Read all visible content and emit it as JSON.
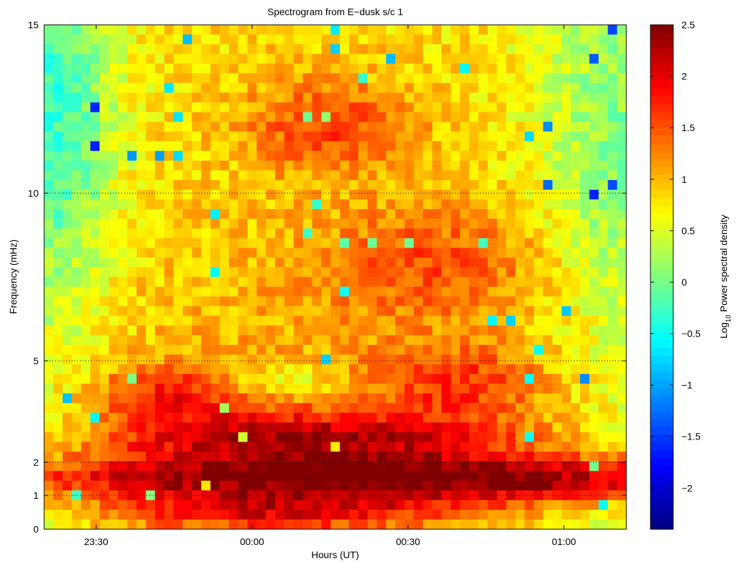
{
  "chart_data": {
    "type": "heatmap",
    "title": "Spectrogram from E−dusk s/c 1",
    "xlabel": "Hours (UT)",
    "ylabel": "Frequency (mHz)",
    "x_ticks": [
      "23:30",
      "00:00",
      "00:30",
      "01:00"
    ],
    "y_ticks": [
      "0",
      "1",
      "2",
      "5",
      "10",
      "15"
    ],
    "y_tick_values": [
      0,
      1,
      2,
      5,
      10,
      15
    ],
    "gridlines_y": [
      1,
      2,
      5,
      10
    ],
    "time_range": [
      "23:20",
      "01:12"
    ],
    "frequency_range_mHz": [
      0,
      15
    ],
    "colorbar": {
      "label_prefix": "Log",
      "label_sub": "10",
      "label_suffix": " Power spectral density",
      "ticks": [
        "2.5",
        "2",
        "1.5",
        "1",
        "0.5",
        "0",
        "−0.5",
        "−1",
        "−1.5",
        "−2"
      ],
      "tick_values": [
        2.5,
        2,
        1.5,
        1,
        0.5,
        0,
        -0.5,
        -1,
        -1.5,
        -2
      ],
      "range": [
        -2.4,
        2.5
      ],
      "colormap": "jet"
    },
    "features": [
      {
        "time_start": "23:30",
        "time_end": "01:10",
        "freq_mHz": [
          1,
          2
        ],
        "log10_psd": 2.3
      },
      {
        "time_start": "23:45",
        "time_end": "00:40",
        "freq_mHz": [
          2,
          3.5
        ],
        "log10_psd": 2.0
      },
      {
        "time_start": "23:30",
        "time_end": "00:30",
        "freq_mHz": [
          0,
          1
        ],
        "log10_psd": 1.8
      },
      {
        "time_start": "23:35",
        "time_end": "00:50",
        "freq_mHz": [
          3.5,
          8
        ],
        "log10_psd": 1.3
      },
      {
        "time_start": "00:10",
        "time_end": "00:20",
        "freq_mHz": [
          11,
          13
        ],
        "log10_psd": 1.5
      },
      {
        "time_start": "23:20",
        "time_end": "23:30",
        "freq_mHz": [
          9,
          15
        ],
        "log10_psd": -0.5
      }
    ]
  }
}
